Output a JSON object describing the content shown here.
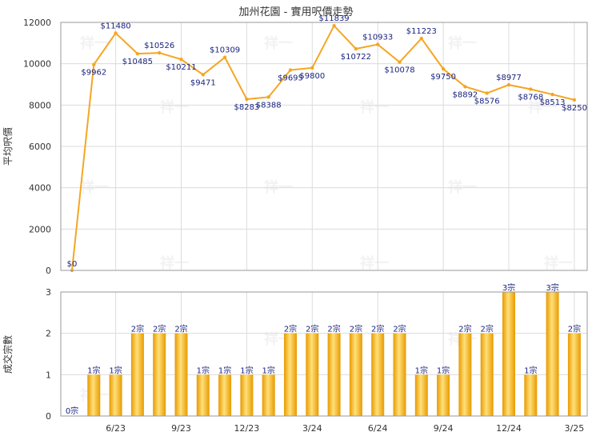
{
  "chart_data": [
    {
      "type": "line",
      "title": "加州花園 - 實用呎價走勢",
      "ylabel": "平均呎價",
      "ylim": [
        0,
        12000
      ],
      "yticks": [
        0,
        2000,
        4000,
        6000,
        8000,
        10000,
        12000
      ],
      "grid": true,
      "series": [
        {
          "color": "#f5a623",
          "values": [
            0,
            9962,
            11480,
            10485,
            10526,
            10211,
            9471,
            10309,
            8283,
            8388,
            9695,
            9800,
            11839,
            10722,
            10933,
            10078,
            11223,
            9750,
            8892,
            8576,
            8977,
            8768,
            8513,
            8250
          ],
          "labels": [
            "$0",
            "$9962",
            "$11480",
            "$10485",
            "$10526",
            "$10211",
            "$9471",
            "$10309",
            "$8283",
            "$8388",
            "$9695",
            "$9800",
            "$11839",
            "$10722",
            "$10933",
            "$10078",
            "$11223",
            "$9750",
            "$8892",
            "$8576",
            "$8977",
            "$8768",
            "$8513",
            "$8250"
          ]
        }
      ]
    },
    {
      "type": "bar",
      "ylabel": "成交宗數",
      "ylim": [
        0,
        3
      ],
      "yticks": [
        0,
        1,
        2,
        3
      ],
      "grid": true,
      "x_tick_labels": [
        "6/23",
        "9/23",
        "12/23",
        "3/24",
        "6/24",
        "9/24",
        "12/24",
        "3/25"
      ],
      "series": [
        {
          "color": "#f5b800",
          "values": [
            0,
            1,
            1,
            2,
            2,
            2,
            1,
            1,
            1,
            1,
            2,
            2,
            2,
            2,
            2,
            2,
            1,
            1,
            2,
            2,
            3,
            1,
            3,
            2
          ],
          "labels": [
            "0宗",
            "1宗",
            "1宗",
            "2宗",
            "2宗",
            "2宗",
            "1宗",
            "1宗",
            "1宗",
            "1宗",
            "2宗",
            "2宗",
            "2宗",
            "2宗",
            "2宗",
            "2宗",
            "1宗",
            "1宗",
            "2宗",
            "2宗",
            "3宗",
            "1宗",
            "3宗",
            "2宗"
          ]
        }
      ]
    }
  ],
  "watermark": "祥一"
}
